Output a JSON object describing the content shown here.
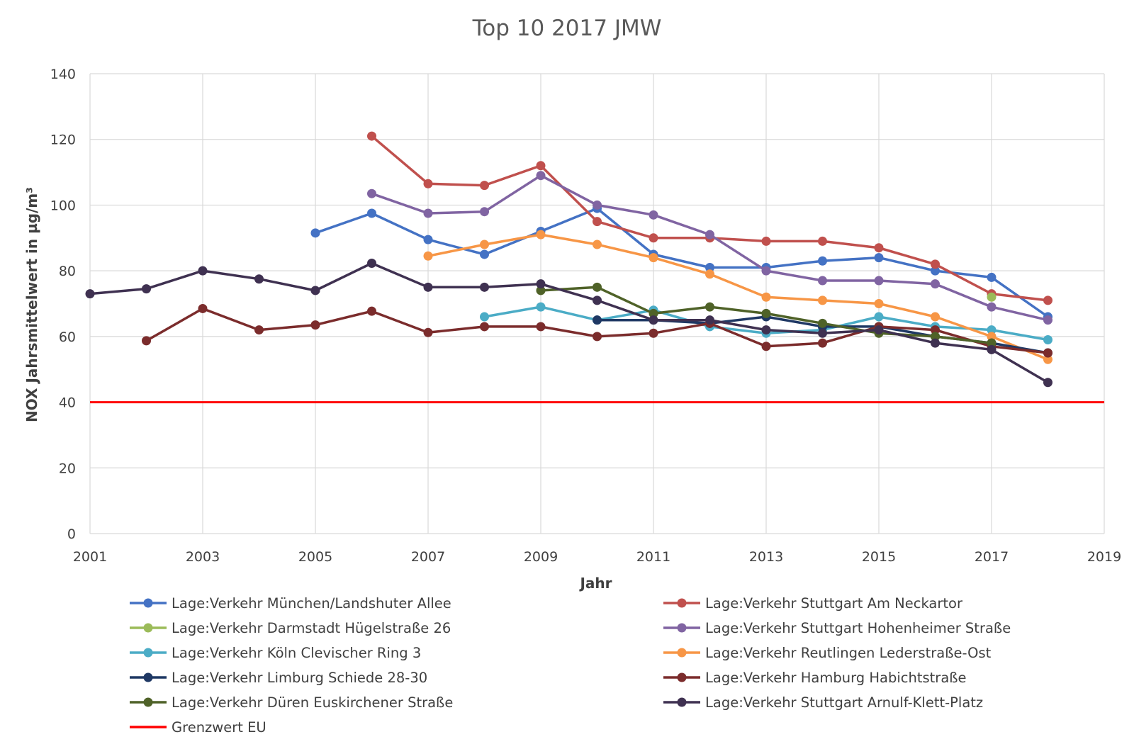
{
  "chart_data": {
    "type": "line",
    "title": "Top 10 2017 JMW",
    "xlabel": "Jahr",
    "ylabel": "NOX Jahrsmittelwert in µg/m³",
    "xlim": [
      2001,
      2019
    ],
    "ylim": [
      0,
      140
    ],
    "xticks": [
      "2001",
      "2003",
      "2005",
      "2007",
      "2009",
      "2011",
      "2013",
      "2015",
      "2017",
      "2019"
    ],
    "yticks": [
      "0",
      "20",
      "40",
      "60",
      "80",
      "100",
      "120",
      "140"
    ],
    "grid": true,
    "legend_position": "bottom",
    "series": [
      {
        "name": "Lage:Verkehr  München/Landshuter Allee",
        "color": "#4472c4",
        "points": [
          [
            2005,
            91.5
          ],
          [
            2006,
            97.5
          ],
          [
            2007,
            89.5
          ],
          [
            2008,
            85
          ],
          [
            2009,
            92
          ],
          [
            2010,
            99
          ],
          [
            2011,
            85
          ],
          [
            2012,
            81
          ],
          [
            2013,
            81
          ],
          [
            2014,
            83
          ],
          [
            2015,
            84
          ],
          [
            2016,
            80
          ],
          [
            2017,
            78
          ],
          [
            2018,
            66
          ]
        ]
      },
      {
        "name": "Lage:Verkehr  Stuttgart Am Neckartor",
        "color": "#c0504d",
        "points": [
          [
            2006,
            121
          ],
          [
            2007,
            106.5
          ],
          [
            2008,
            106
          ],
          [
            2009,
            112
          ],
          [
            2010,
            95
          ],
          [
            2011,
            90
          ],
          [
            2012,
            90
          ],
          [
            2013,
            89
          ],
          [
            2014,
            89
          ],
          [
            2015,
            87
          ],
          [
            2016,
            82
          ],
          [
            2017,
            73
          ],
          [
            2018,
            71
          ]
        ]
      },
      {
        "name": "Lage:Verkehr  Darmstadt Hügelstraße 26",
        "color": "#9bbb59",
        "points": [
          [
            2017,
            72
          ]
        ]
      },
      {
        "name": "Lage:Verkehr  Stuttgart Hohenheimer Straße",
        "color": "#8064a2",
        "points": [
          [
            2006,
            103.5
          ],
          [
            2007,
            97.5
          ],
          [
            2008,
            98
          ],
          [
            2009,
            109
          ],
          [
            2010,
            100
          ],
          [
            2011,
            97
          ],
          [
            2012,
            91
          ],
          [
            2013,
            80
          ],
          [
            2014,
            77
          ],
          [
            2015,
            77
          ],
          [
            2016,
            76
          ],
          [
            2017,
            69
          ],
          [
            2018,
            65
          ]
        ]
      },
      {
        "name": "Lage:Verkehr  Köln Clevischer Ring 3",
        "color": "#4bacc6",
        "points": [
          [
            2008,
            66
          ],
          [
            2009,
            69
          ],
          [
            2010,
            65
          ],
          [
            2011,
            68
          ],
          [
            2012,
            63
          ],
          [
            2013,
            61
          ],
          [
            2014,
            62
          ],
          [
            2015,
            66
          ],
          [
            2016,
            63
          ],
          [
            2017,
            62
          ],
          [
            2018,
            59
          ]
        ]
      },
      {
        "name": "Lage:Verkehr  Reutlingen Lederstraße-Ost",
        "color": "#f79646",
        "points": [
          [
            2007,
            84.5
          ],
          [
            2008,
            88
          ],
          [
            2009,
            91
          ],
          [
            2010,
            88
          ],
          [
            2011,
            84
          ],
          [
            2012,
            79
          ],
          [
            2013,
            72
          ],
          [
            2014,
            71
          ],
          [
            2015,
            70
          ],
          [
            2016,
            66
          ],
          [
            2017,
            60
          ],
          [
            2018,
            53
          ]
        ]
      },
      {
        "name": "Lage:Verkehr  Limburg Schiede 28-30",
        "color": "#1f3864",
        "points": [
          [
            2010,
            65
          ],
          [
            2011,
            65
          ],
          [
            2012,
            64
          ],
          [
            2013,
            66
          ],
          [
            2014,
            63
          ],
          [
            2015,
            63
          ],
          [
            2016,
            60
          ],
          [
            2017,
            58
          ],
          [
            2018,
            55
          ]
        ]
      },
      {
        "name": "Lage:Verkehr  Hamburg Habichtstraße",
        "color": "#7b2c2c",
        "points": [
          [
            2002,
            58.7
          ],
          [
            2003,
            68.5
          ],
          [
            2004,
            62
          ],
          [
            2005,
            63.5
          ],
          [
            2006,
            67.7
          ],
          [
            2007,
            61.2
          ],
          [
            2008,
            63
          ],
          [
            2009,
            63
          ],
          [
            2010,
            60
          ],
          [
            2011,
            61
          ],
          [
            2012,
            64
          ],
          [
            2013,
            57
          ],
          [
            2014,
            58
          ],
          [
            2015,
            63
          ],
          [
            2016,
            62
          ],
          [
            2017,
            57
          ],
          [
            2018,
            55
          ]
        ]
      },
      {
        "name": "Lage:Verkehr  Düren Euskirchener Straße",
        "color": "#4f6228",
        "points": [
          [
            2009,
            74
          ],
          [
            2010,
            75
          ],
          [
            2011,
            67
          ],
          [
            2012,
            69
          ],
          [
            2013,
            67
          ],
          [
            2014,
            64
          ],
          [
            2015,
            61
          ],
          [
            2016,
            60
          ],
          [
            2017,
            58
          ]
        ]
      },
      {
        "name": "Lage:Verkehr  Stuttgart Arnulf-Klett-Platz",
        "color": "#3f3151",
        "points": [
          [
            2001,
            73
          ],
          [
            2002,
            74.5
          ],
          [
            2003,
            80
          ],
          [
            2004,
            77.5
          ],
          [
            2005,
            74
          ],
          [
            2006,
            82.3
          ],
          [
            2007,
            75
          ],
          [
            2008,
            75
          ],
          [
            2009,
            76
          ],
          [
            2010,
            71
          ],
          [
            2011,
            65
          ],
          [
            2012,
            65
          ],
          [
            2013,
            62
          ],
          [
            2014,
            61
          ],
          [
            2015,
            62
          ],
          [
            2016,
            58
          ],
          [
            2017,
            56
          ],
          [
            2018,
            46
          ]
        ]
      },
      {
        "name": "Grenzwert EU",
        "color": "#ff0000",
        "kind": "hline",
        "value": 40
      }
    ]
  }
}
